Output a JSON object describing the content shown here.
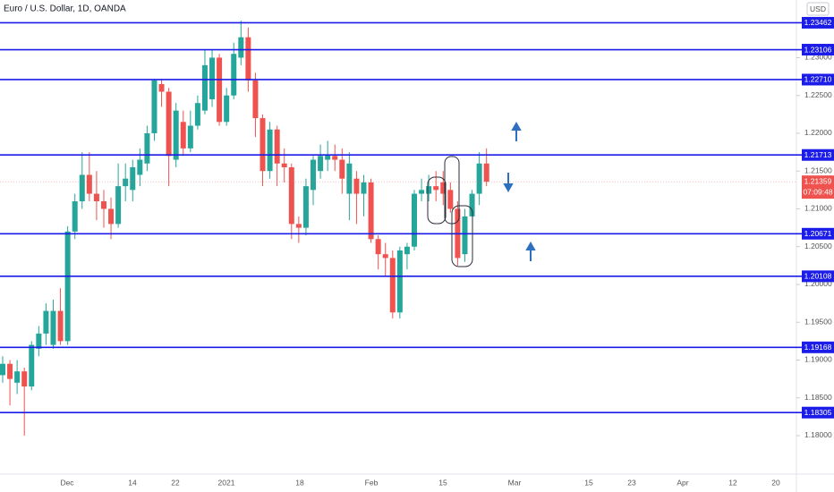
{
  "chart_data": {
    "type": "candlestick",
    "title": "Euro / U.S. Dollar, 1D, OANDA",
    "currency": "USD",
    "up_color": "#26a69a",
    "down_color": "#ef5350",
    "level_color": "#1c1ce8",
    "open": [
      1.188,
      1.1895,
      1.187,
      1.1885,
      1.1865,
      1.1915,
      1.1935,
      1.192,
      1.1965,
      1.1925,
      1.207,
      1.211,
      1.2145,
      1.212,
      1.211,
      1.21,
      1.208,
      1.213,
      1.2125,
      1.2145,
      1.216,
      1.22,
      1.2265,
      1.2255,
      1.2165,
      1.2215,
      1.218,
      1.221,
      1.223,
      1.2245,
      1.23,
      1.2215,
      1.225,
      1.23,
      1.2327,
      1.227,
      1.222,
      1.215,
      1.2205,
      1.216,
      1.2155,
      1.208,
      1.2075,
      1.2125,
      1.215,
      1.2165,
      1.217,
      1.2165,
      1.212,
      1.214,
      1.212,
      1.2135,
      1.206,
      1.204,
      1.2035,
      1.1963,
      1.204,
      1.205,
      1.212,
      1.212,
      1.213,
      1.2135,
      1.2125,
      1.21,
      1.204,
      1.209,
      1.212,
      1.216
    ],
    "high": [
      1.1905,
      1.19,
      1.19,
      1.189,
      1.1925,
      1.1945,
      1.1975,
      1.198,
      1.1995,
      1.2077,
      1.212,
      1.2175,
      1.2175,
      1.215,
      1.2125,
      1.2115,
      1.216,
      1.216,
      1.2165,
      1.218,
      1.221,
      1.2272,
      1.2272,
      1.226,
      1.224,
      1.223,
      1.223,
      1.225,
      1.231,
      1.231,
      1.2305,
      1.226,
      1.232,
      1.2349,
      1.234,
      1.228,
      1.2225,
      1.2215,
      1.221,
      1.218,
      1.216,
      1.209,
      1.214,
      1.217,
      1.2185,
      1.219,
      1.2185,
      1.218,
      1.2175,
      1.215,
      1.2145,
      1.214,
      1.2065,
      1.2055,
      1.2045,
      1.205,
      1.2055,
      1.2125,
      1.214,
      1.2145,
      1.215,
      1.215,
      1.2135,
      1.211,
      1.21,
      1.2125,
      1.2175,
      1.218
    ],
    "low": [
      1.187,
      1.184,
      1.1855,
      1.18,
      1.186,
      1.1905,
      1.192,
      1.1915,
      1.192,
      1.192,
      1.206,
      1.21,
      1.211,
      1.2085,
      1.2075,
      1.206,
      1.2075,
      1.211,
      1.211,
      1.213,
      1.215,
      1.219,
      1.2235,
      1.213,
      1.2155,
      1.217,
      1.2175,
      1.2205,
      1.2225,
      1.2235,
      1.221,
      1.221,
      1.2245,
      1.229,
      1.2255,
      1.2195,
      1.213,
      1.214,
      1.213,
      1.2135,
      1.206,
      1.2055,
      1.2065,
      1.2105,
      1.214,
      1.215,
      1.215,
      1.212,
      1.2085,
      1.208,
      1.209,
      1.2055,
      1.202,
      1.201,
      1.1955,
      1.1955,
      1.202,
      1.2045,
      1.211,
      1.211,
      1.211,
      1.2105,
      1.2095,
      1.2025,
      1.203,
      1.209,
      1.2105,
      1.213
    ],
    "close": [
      1.1895,
      1.1875,
      1.1885,
      1.1865,
      1.192,
      1.1935,
      1.1965,
      1.1965,
      1.1925,
      1.207,
      1.211,
      1.2145,
      1.212,
      1.211,
      1.21,
      1.208,
      1.213,
      1.214,
      1.2155,
      1.2165,
      1.22,
      1.227,
      1.2255,
      1.217,
      1.223,
      1.218,
      1.221,
      1.224,
      1.229,
      1.23,
      1.2215,
      1.225,
      1.2305,
      1.2327,
      1.227,
      1.222,
      1.215,
      1.2205,
      1.216,
      1.2155,
      1.208,
      1.2075,
      1.213,
      1.2165,
      1.217,
      1.2172,
      1.2165,
      1.214,
      1.216,
      1.212,
      1.2135,
      1.206,
      1.204,
      1.2035,
      1.1963,
      1.2045,
      1.205,
      1.212,
      1.2125,
      1.213,
      1.2125,
      1.212,
      1.21,
      1.2035,
      1.209,
      1.212,
      1.216,
      1.21359
    ],
    "ylim": [
      1.17491,
      1.23763
    ],
    "yticks": [
      {
        "value": 1.18,
        "label": "1.18000"
      },
      {
        "value": 1.185,
        "label": "1.18500"
      },
      {
        "value": 1.19,
        "label": "1.19000"
      },
      {
        "value": 1.195,
        "label": "1.19500"
      },
      {
        "value": 1.2,
        "label": "1.20000"
      },
      {
        "value": 1.205,
        "label": "1.20500"
      },
      {
        "value": 1.21,
        "label": "1.21000"
      },
      {
        "value": 1.215,
        "label": "1.21500"
      },
      {
        "value": 1.22,
        "label": "1.22000"
      },
      {
        "value": 1.225,
        "label": "1.22500"
      },
      {
        "value": 1.23,
        "label": "1.23000"
      }
    ],
    "levels": [
      1.23462,
      1.23106,
      {
        "value": 1.2271,
        "label": "1.22710"
      },
      1.21713,
      1.20671,
      1.20108,
      1.19168,
      1.18305
    ],
    "last_price": 1.21359,
    "countdown": "07:09:48",
    "xticks": [
      "Dec",
      "14",
      "22",
      "2021",
      "18",
      "Feb",
      "15",
      "Mar",
      "15",
      "23",
      "Apr",
      "12",
      "20"
    ]
  }
}
